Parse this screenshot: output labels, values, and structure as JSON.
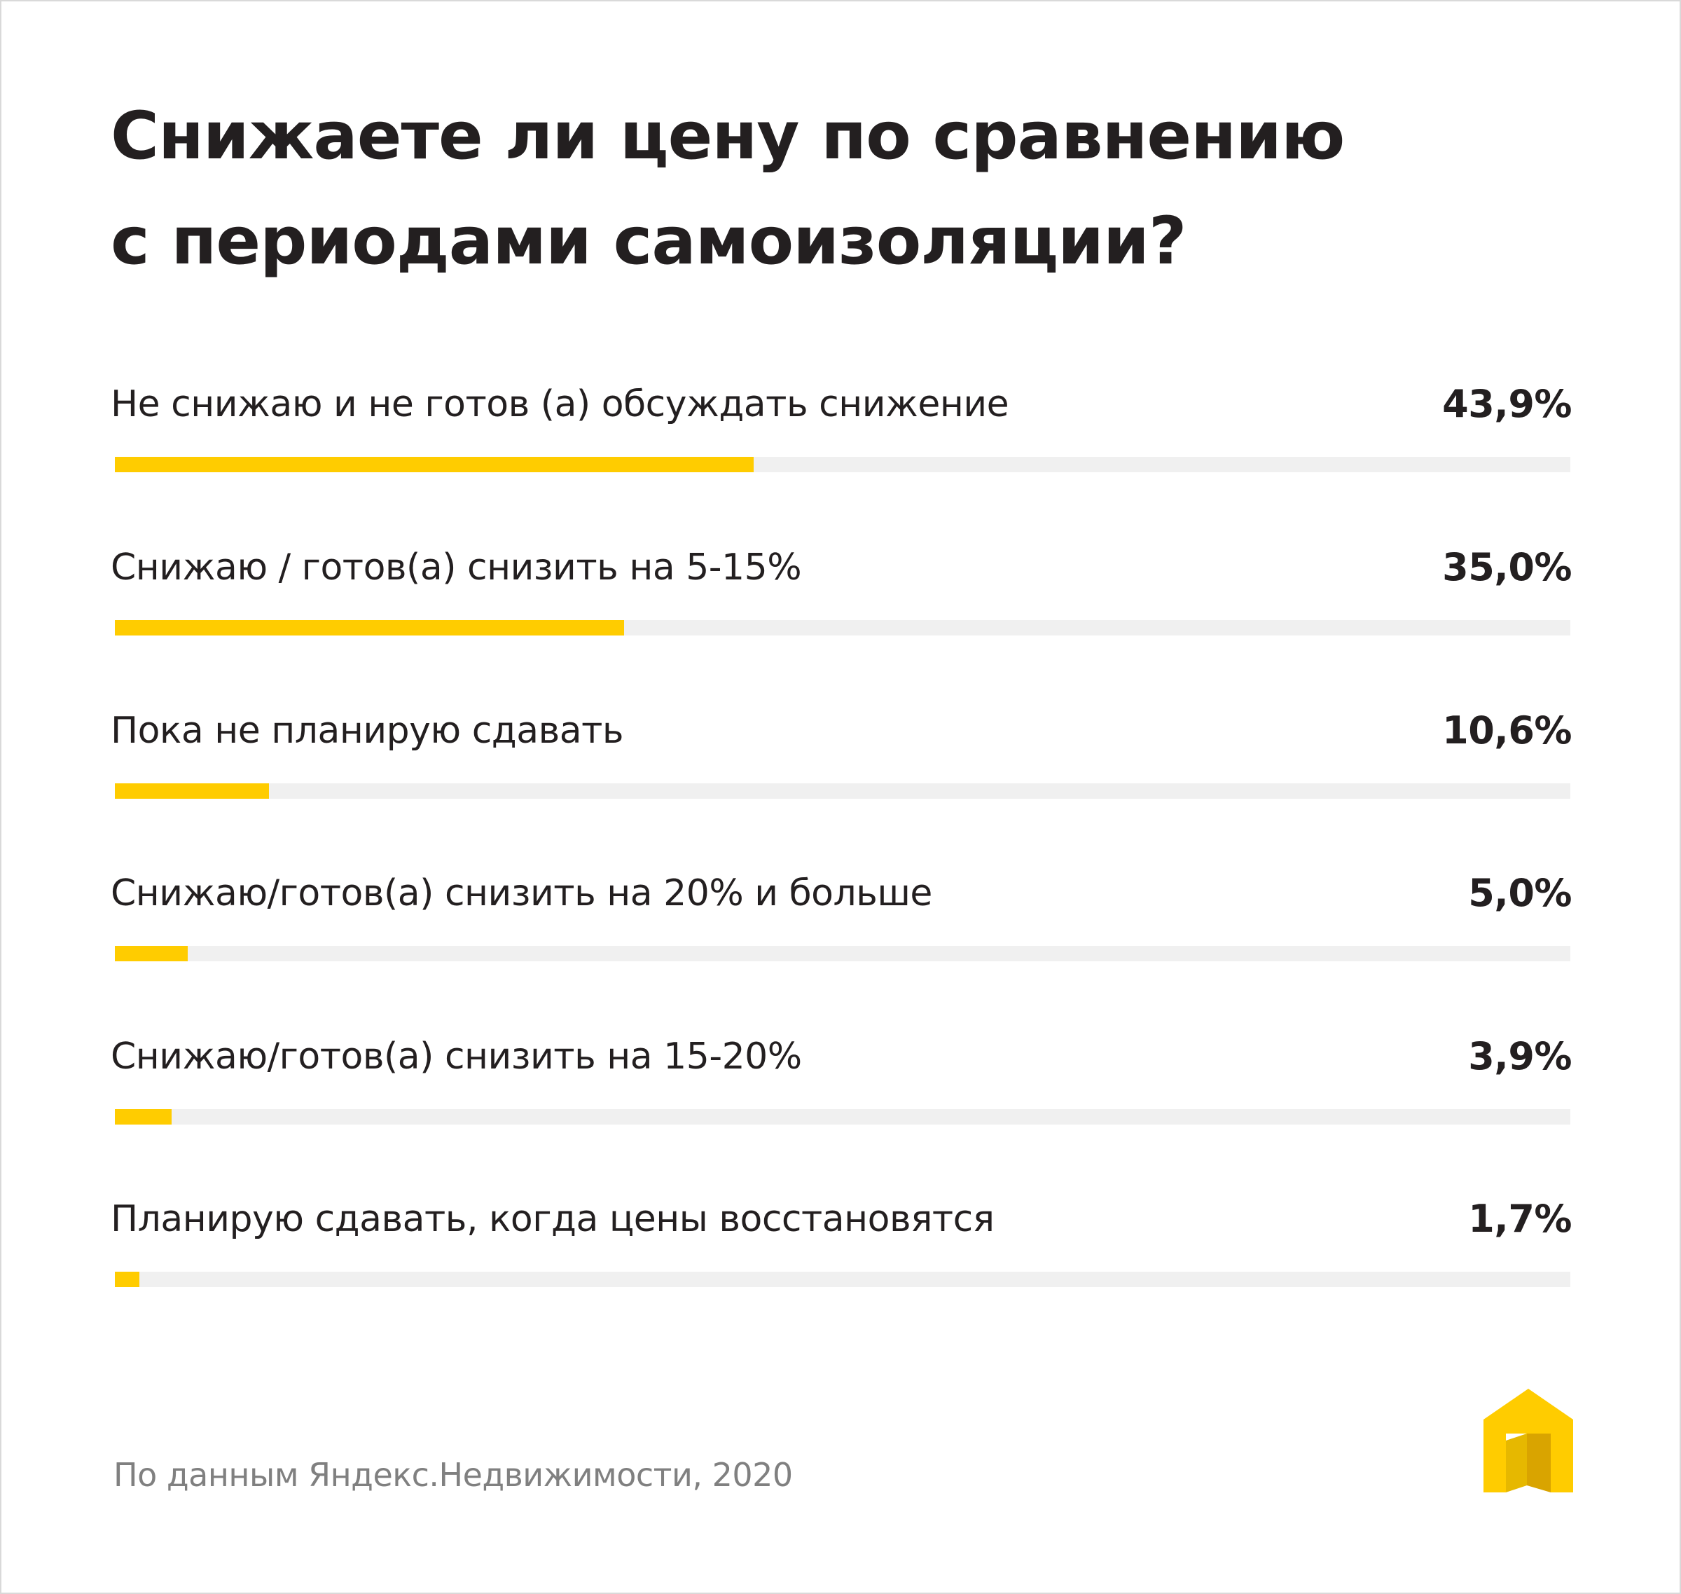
{
  "colors": {
    "accent": "#ffcc00",
    "track": "#f0f0f0",
    "text": "#231f20",
    "muted": "#808080"
  },
  "chart_data": {
    "type": "bar",
    "orientation": "horizontal",
    "title": "Снижаете ли цену по сравнению с периодами самоизоляции?",
    "title_lines": [
      "Снижаете ли цену по сравнению",
      "с периодами самоизоляции?"
    ],
    "categories": [
      "Не снижаю и не готов (а) обсуждать снижение",
      "Снижаю /  готов(а) снизить на 5-15%",
      "Пока не планирую  сдавать",
      "Снижаю/готов(а) снизить на 20% и больше",
      "Снижаю/готов(а) снизить на 15-20%",
      "Планирую сдавать, когда цены восстановятся"
    ],
    "values": [
      43.9,
      35.0,
      10.6,
      5.0,
      3.9,
      1.7
    ],
    "value_labels": [
      "43,9%",
      "35,0%",
      "10,6%",
      "5,0%",
      "3,9%",
      "1,7%"
    ],
    "unit": "%",
    "xlim": [
      0,
      100
    ],
    "grid": false,
    "legend": "none"
  },
  "footer": {
    "source": "По данным Яндекс.Недвижимости, 2020",
    "logo_icon": "yandex-realty-house-icon"
  }
}
